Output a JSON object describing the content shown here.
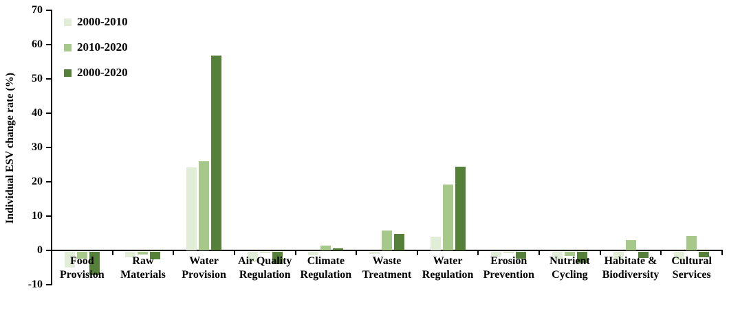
{
  "chart_data": {
    "type": "bar",
    "title": "",
    "xlabel": "",
    "ylabel": "Individual ESV change rate (%)",
    "ylim": [
      -10,
      70
    ],
    "yticks": [
      70,
      60,
      50,
      40,
      30,
      20,
      10,
      0,
      -10
    ],
    "grid": false,
    "legend_position": "top-left-inside",
    "categories": [
      {
        "label": "Food Provision",
        "lines": [
          "Food",
          "Provision"
        ]
      },
      {
        "label": "Raw Materials",
        "lines": [
          "Raw",
          "Materials"
        ]
      },
      {
        "label": "Water Provision",
        "lines": [
          "Water",
          "Provision"
        ]
      },
      {
        "label": "Air Quality Regulation",
        "lines": [
          "Air Quality",
          "Regulation"
        ]
      },
      {
        "label": "Climate Regulation",
        "lines": [
          "Climate",
          "Regulation"
        ]
      },
      {
        "label": "Waste Treatment",
        "lines": [
          "Waste",
          "Treatment"
        ]
      },
      {
        "label": "Water Regulation",
        "lines": [
          "Water",
          "Regulation"
        ]
      },
      {
        "label": "Erosion Prevention",
        "lines": [
          "Erosion",
          "Prevention"
        ]
      },
      {
        "label": "Nutrient Cycling",
        "lines": [
          "Nutrient",
          "Cycling"
        ]
      },
      {
        "label": "Habitate & Biodiversity",
        "lines": [
          "Habitate &",
          "Biodiversity"
        ]
      },
      {
        "label": "Cultural Services",
        "lines": [
          "Cultural",
          "Services"
        ]
      }
    ],
    "series": [
      {
        "name": "2000-2010",
        "color": "#e2edd7",
        "values": [
          -4.6,
          -1.5,
          24.3,
          -2.9,
          -0.9,
          -0.6,
          4.0,
          -1.3,
          -2.1,
          -2.2,
          -2.3
        ]
      },
      {
        "name": "2010-2020",
        "color": "#a6c98b",
        "values": [
          -2.0,
          -0.7,
          26.0,
          -0.2,
          1.5,
          5.8,
          19.3,
          -0.2,
          -1.2,
          3.0,
          4.2
        ]
      },
      {
        "name": "2000-2020",
        "color": "#55803a",
        "values": [
          -6.8,
          -2.2,
          56.8,
          -3.5,
          0.6,
          4.8,
          24.5,
          -2.0,
          -3.2,
          -1.8,
          -1.6
        ]
      }
    ],
    "axis_color": "#000000",
    "text_color": "#000000",
    "background_color": "#ffffff"
  }
}
